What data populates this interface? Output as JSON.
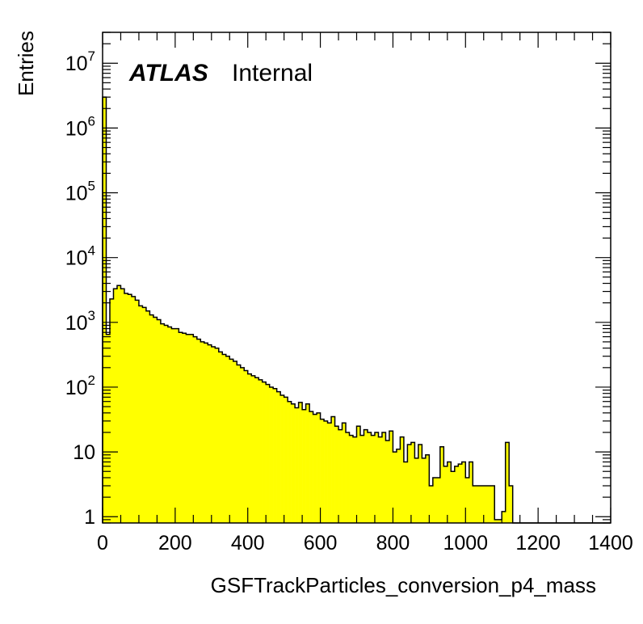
{
  "chart_data": {
    "type": "bar",
    "xlabel": "GSFTrackParticles_conversion_p4_mass",
    "ylabel": "Entries",
    "log_y": true,
    "xlim": [
      0,
      1400
    ],
    "ylim": [
      0.8,
      30000000
    ],
    "bin_width": 10,
    "x_ticks": [
      {
        "value": 0,
        "label": "0"
      },
      {
        "value": 200,
        "label": "200"
      },
      {
        "value": 400,
        "label": "400"
      },
      {
        "value": 600,
        "label": "600"
      },
      {
        "value": 800,
        "label": "800"
      },
      {
        "value": 1000,
        "label": "1000"
      },
      {
        "value": 1200,
        "label": "1200"
      },
      {
        "value": 1400,
        "label": "1400"
      }
    ],
    "y_ticks": [
      {
        "value": 1,
        "base": "1",
        "exp": ""
      },
      {
        "value": 10,
        "base": "10",
        "exp": ""
      },
      {
        "value": 100,
        "base": "10",
        "exp": "2"
      },
      {
        "value": 1000,
        "base": "10",
        "exp": "3"
      },
      {
        "value": 10000,
        "base": "10",
        "exp": "4"
      },
      {
        "value": 100000,
        "base": "10",
        "exp": "5"
      },
      {
        "value": 1000000,
        "base": "10",
        "exp": "6"
      },
      {
        "value": 10000000,
        "base": "10",
        "exp": "7"
      }
    ],
    "annotation": {
      "experiment": "ATLAS",
      "status": "Internal"
    },
    "fill_color": "#ffff00",
    "line_color": "#000000",
    "values": [
      3000000,
      650,
      2300,
      3300,
      3700,
      3300,
      2800,
      2700,
      2500,
      2200,
      1800,
      1700,
      1500,
      1300,
      1200,
      1100,
      950,
      900,
      850,
      800,
      800,
      700,
      680,
      650,
      650,
      600,
      550,
      500,
      480,
      450,
      420,
      400,
      350,
      320,
      300,
      270,
      250,
      220,
      200,
      180,
      160,
      150,
      140,
      130,
      120,
      110,
      100,
      95,
      85,
      75,
      70,
      60,
      55,
      48,
      58,
      45,
      55,
      42,
      38,
      40,
      32,
      30,
      28,
      35,
      25,
      22,
      28,
      20,
      18,
      17,
      25,
      18,
      22,
      20,
      18,
      20,
      17,
      20,
      15,
      21,
      10,
      11,
      17,
      7,
      13,
      14,
      8,
      13,
      8,
      9,
      3,
      4,
      4,
      12,
      6,
      7,
      5,
      6,
      6.5,
      7,
      4,
      7,
      3,
      3,
      3,
      3,
      3,
      3,
      0.9,
      0.9,
      1.2,
      14,
      3,
      0,
      0,
      0,
      0,
      0,
      0,
      0,
      0,
      0,
      0,
      0,
      0,
      0,
      0,
      0,
      0,
      0,
      0,
      0,
      0,
      0,
      0,
      0,
      0,
      0,
      0,
      0
    ]
  }
}
